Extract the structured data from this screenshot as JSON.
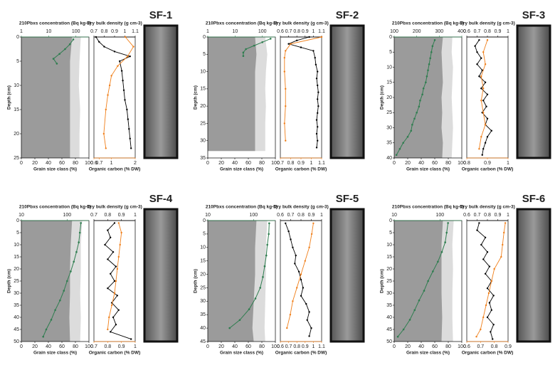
{
  "chart_data": [
    {
      "type": "profile",
      "title": "SF-1",
      "title_color": "#d0202e",
      "ylabel": "Depth (cm)",
      "ylim": [
        0,
        25
      ],
      "yticks": [
        0,
        5,
        10,
        15,
        20,
        25
      ],
      "grain": {
        "xlabel": "Grain size class (%)",
        "xlim": [
          0,
          100
        ],
        "xticks": [
          0,
          20,
          40,
          60,
          80,
          100
        ],
        "dark_color": "#9b9b9b",
        "light_color": "#dcdcdc",
        "depths": [
          0,
          5,
          10,
          15,
          20,
          25
        ],
        "dark": [
          75,
          72,
          72,
          72,
          72,
          72
        ],
        "light": [
          88,
          86,
          85,
          87,
          86,
          86
        ]
      },
      "pb": {
        "label": "210Pbxs concentration (Bq kg-1)",
        "xlim": [
          1,
          300
        ],
        "xticks": [
          1,
          10,
          100
        ],
        "log": true,
        "color": "#2e7d4f",
        "depths": [
          0.5,
          1.5,
          2.5,
          3.5,
          4.5,
          5.5
        ],
        "values": [
          80,
          60,
          40,
          25,
          15,
          20
        ]
      },
      "density": {
        "label": "Dry bulk density (g cm-3)",
        "xlim": [
          0.7,
          1.1
        ],
        "xticks": [
          0.7,
          0.8,
          0.9,
          1.0,
          1.1
        ],
        "color": "#000000",
        "depths": [
          0,
          1,
          2,
          3,
          4,
          5,
          7,
          9,
          11,
          13,
          15,
          17,
          19,
          21,
          23
        ],
        "values": [
          0.72,
          0.75,
          0.8,
          0.9,
          1.05,
          0.95,
          0.97,
          0.98,
          0.99,
          1.0,
          1.02,
          1.03,
          1.04,
          1.05,
          1.06
        ]
      },
      "oc": {
        "label": "Organic carbon (% DW)",
        "xlim": [
          0.6,
          2.0
        ],
        "xticks": [
          0.6,
          0.7,
          1.0,
          2.0
        ],
        "log": true,
        "color": "#f07f1a",
        "depths": [
          0,
          2,
          4,
          6,
          8,
          10,
          12,
          15,
          20,
          23
        ],
        "values": [
          1.5,
          1.9,
          1.6,
          1.2,
          1.0,
          0.95,
          0.9,
          0.85,
          0.8,
          0.85
        ]
      }
    },
    {
      "type": "profile",
      "title": "SF-2",
      "title_color": "#d0202e",
      "ylabel": "Depth (cm)",
      "ylim": [
        0,
        35
      ],
      "yticks": [
        0,
        5,
        10,
        15,
        20,
        25,
        30,
        35
      ],
      "grain": {
        "xlabel": "Grain size class (%)",
        "xlim": [
          0,
          100
        ],
        "xticks": [
          0,
          20,
          40,
          60,
          80,
          100
        ],
        "dark_color": "#9b9b9b",
        "light_color": "#dcdcdc",
        "depths": [
          0,
          5,
          10,
          15,
          20,
          25,
          30,
          33
        ],
        "dark": [
          70,
          72,
          70,
          70,
          70,
          70,
          70,
          70
        ],
        "light": [
          85,
          88,
          86,
          85,
          86,
          85,
          85,
          85
        ]
      },
      "pb": {
        "label": "210Pbxs concentration (Bq kg-1)",
        "xlim": [
          1,
          300
        ],
        "xticks": [
          1,
          10,
          100
        ],
        "log": true,
        "color": "#2e7d4f",
        "depths": [
          0.5,
          1.5,
          2.5,
          3.5,
          4.5,
          5.5
        ],
        "values": [
          200,
          100,
          50,
          25,
          20,
          20
        ]
      },
      "density": {
        "label": "Dry bulk density (g cm-3)",
        "xlim": [
          0.6,
          1.1
        ],
        "xticks": [
          0.6,
          0.7,
          0.8,
          0.9,
          1.0,
          1.1
        ],
        "color": "#000000",
        "depths": [
          0,
          1,
          2,
          3,
          4,
          6,
          8,
          10,
          12,
          14,
          16,
          18,
          20,
          22,
          24,
          26,
          28,
          30,
          32
        ],
        "values": [
          0.95,
          0.8,
          0.7,
          0.85,
          1.0,
          1.02,
          1.03,
          1.05,
          1.04,
          1.05,
          1.06,
          1.05,
          1.06,
          1.05,
          1.04,
          1.05,
          1.04,
          1.05,
          1.04
        ]
      },
      "oc": {
        "label": "Organic carbon (% DW)",
        "xlim": [
          0.7,
          1.1
        ],
        "xticks": [
          0.7,
          0.8,
          0.9,
          1.0,
          1.1
        ],
        "color": "#f07f1a",
        "depths": [
          0,
          2,
          4,
          6,
          10,
          15,
          20,
          25,
          30
        ],
        "values": [
          1.1,
          0.8,
          0.75,
          0.74,
          0.74,
          0.75,
          0.75,
          0.74,
          0.75
        ]
      }
    },
    {
      "type": "profile",
      "title": "SF-3",
      "title_color": "#2a2aa8",
      "ylabel": "Depth (cm)",
      "ylim": [
        0,
        40
      ],
      "yticks": [
        0,
        5,
        10,
        15,
        20,
        25,
        30,
        35,
        40
      ],
      "grain": {
        "xlabel": "Grain size class (%)",
        "xlim": [
          0,
          100
        ],
        "xticks": [
          0,
          20,
          40,
          60,
          80,
          100
        ],
        "dark_color": "#9b9b9b",
        "light_color": "#dcdcdc",
        "depths": [
          0,
          5,
          10,
          15,
          20,
          25,
          30,
          35,
          40
        ],
        "dark": [
          72,
          70,
          71,
          72,
          70,
          71,
          70,
          72,
          71
        ],
        "light": [
          86,
          85,
          87,
          86,
          85,
          86,
          87,
          86,
          85
        ]
      },
      "pb": {
        "label": "210Pbxs concentration (Bq kg-1)",
        "xlim": [
          100,
          400
        ],
        "xticks": [
          100,
          200,
          300,
          400
        ],
        "color": "#2e7d4f",
        "depths": [
          1,
          3,
          5,
          7,
          9,
          11,
          13,
          15,
          17,
          19,
          21,
          23,
          25,
          27,
          29,
          31,
          33,
          35,
          37,
          39
        ],
        "values": [
          280,
          270,
          265,
          260,
          255,
          250,
          245,
          240,
          230,
          225,
          215,
          210,
          200,
          190,
          180,
          175,
          160,
          140,
          125,
          110
        ]
      },
      "density": {
        "label": "Dry bulk density (g cm-3)",
        "xlim": [
          0.6,
          1.0
        ],
        "xticks": [
          0.6,
          0.7,
          0.8,
          0.9,
          1.0
        ],
        "color": "#000000",
        "depths": [
          1,
          3,
          5,
          7,
          9,
          11,
          13,
          15,
          17,
          19,
          21,
          23,
          25,
          27,
          29,
          31,
          33,
          35,
          37,
          39
        ],
        "values": [
          0.72,
          0.68,
          0.7,
          0.74,
          0.7,
          0.75,
          0.72,
          0.78,
          0.74,
          0.8,
          0.76,
          0.79,
          0.75,
          0.8,
          0.78,
          0.84,
          0.8,
          0.78,
          0.76,
          0.75
        ]
      },
      "oc": {
        "label": "Organic carbon (% DW)",
        "xlim": [
          0.8,
          1.0
        ],
        "xticks": [
          0.8,
          0.9,
          1.0
        ],
        "color": "#f07f1a",
        "depths": [
          1,
          5,
          9,
          13,
          17,
          21,
          25,
          29,
          33,
          37
        ],
        "values": [
          0.9,
          0.88,
          0.89,
          0.87,
          0.88,
          0.87,
          0.88,
          0.89,
          0.87,
          0.86
        ]
      }
    },
    {
      "type": "profile",
      "title": "SF-4",
      "title_color": "#2a2aa8",
      "ylabel": "Depth (cm)",
      "ylim": [
        0,
        50
      ],
      "yticks": [
        0,
        5,
        10,
        15,
        20,
        25,
        30,
        35,
        40,
        45,
        50
      ],
      "grain": {
        "xlabel": "Grain size class (%)",
        "xlim": [
          0,
          100
        ],
        "xticks": [
          0,
          20,
          40,
          60,
          80,
          100
        ],
        "dark_color": "#9b9b9b",
        "light_color": "#dcdcdc",
        "depths": [
          0,
          10,
          20,
          30,
          40,
          50
        ],
        "dark": [
          75,
          73,
          72,
          72,
          71,
          72
        ],
        "light": [
          90,
          88,
          88,
          87,
          88,
          87
        ]
      },
      "pb": {
        "label": "210Pbxs concentration (Bq kg-1)",
        "xlim": [
          10,
          300
        ],
        "xticks": [
          10,
          100
        ],
        "log": true,
        "color": "#2e7d4f",
        "depths": [
          1,
          5,
          9,
          13,
          17,
          21,
          25,
          29,
          33,
          37,
          41,
          45,
          48
        ],
        "values": [
          200,
          190,
          180,
          160,
          140,
          120,
          100,
          85,
          70,
          55,
          45,
          35,
          30
        ]
      },
      "density": {
        "label": "Dry bulk density (g cm-3)",
        "xlim": [
          0.7,
          1.0
        ],
        "xticks": [
          0.7,
          0.8,
          0.9,
          1.0
        ],
        "color": "#000000",
        "depths": [
          1,
          4,
          7,
          10,
          13,
          16,
          19,
          22,
          25,
          28,
          31,
          34,
          37,
          40,
          43,
          46,
          49
        ],
        "values": [
          0.85,
          0.8,
          0.82,
          0.78,
          0.84,
          0.8,
          0.86,
          0.82,
          0.85,
          0.8,
          0.87,
          0.83,
          0.88,
          0.84,
          0.86,
          0.82,
          0.97
        ]
      },
      "oc": {
        "label": "Organic carbon (% DW)",
        "xlim": [
          0.7,
          1.0
        ],
        "xticks": [
          0.7,
          0.8,
          0.9,
          1.0
        ],
        "color": "#f07f1a",
        "depths": [
          1,
          5,
          10,
          15,
          20,
          25,
          30,
          35,
          40,
          45
        ],
        "values": [
          0.88,
          0.9,
          0.89,
          0.88,
          0.87,
          0.86,
          0.85,
          0.83,
          0.81,
          0.8
        ]
      }
    },
    {
      "type": "profile",
      "title": "SF-5",
      "title_color": "#2a2aa8",
      "ylabel": "Depth (cm)",
      "ylim": [
        0,
        45
      ],
      "yticks": [
        0,
        5,
        10,
        15,
        20,
        25,
        30,
        35,
        40,
        45
      ],
      "grain": {
        "xlabel": "Grain size class (%)",
        "xlim": [
          0,
          100
        ],
        "xticks": [
          0,
          20,
          40,
          60,
          80,
          100
        ],
        "dark_color": "#9b9b9b",
        "light_color": "#dcdcdc",
        "depths": [
          0,
          10,
          20,
          30,
          40,
          45
        ],
        "dark": [
          72,
          70,
          70,
          68,
          66,
          68
        ],
        "light": [
          88,
          86,
          86,
          85,
          84,
          85
        ]
      },
      "pb": {
        "label": "210Pbxs concentration (Bq kg-1)",
        "xlim": [
          10,
          300
        ],
        "xticks": [
          10,
          100
        ],
        "log": true,
        "color": "#2e7d4f",
        "depths": [
          1,
          5,
          9,
          13,
          17,
          21,
          25,
          29,
          33,
          37,
          40
        ],
        "values": [
          220,
          215,
          200,
          190,
          175,
          160,
          140,
          110,
          80,
          50,
          30
        ]
      },
      "density": {
        "label": "Dry bulk density (g cm-3)",
        "xlim": [
          0.6,
          1.0
        ],
        "xticks": [
          0.6,
          0.7,
          0.8,
          0.9,
          1.0
        ],
        "color": "#000000",
        "depths": [
          1,
          4,
          7,
          10,
          13,
          16,
          19,
          22,
          25,
          28,
          31,
          34,
          37,
          40,
          43
        ],
        "values": [
          0.65,
          0.68,
          0.7,
          0.72,
          0.75,
          0.74,
          0.78,
          0.8,
          0.82,
          0.8,
          0.85,
          0.88,
          0.86,
          0.9,
          0.88
        ]
      },
      "oc": {
        "label": "Organic carbon (% DW)",
        "xlim": [
          0.6,
          1.1
        ],
        "xticks": [
          0.6,
          0.7,
          0.8,
          0.9,
          1.0,
          1.1
        ],
        "color": "#f07f1a",
        "depths": [
          1,
          5,
          10,
          15,
          20,
          25,
          30,
          35,
          40
        ],
        "values": [
          1.0,
          0.98,
          0.95,
          0.9,
          0.85,
          0.8,
          0.75,
          0.72,
          0.68
        ]
      }
    },
    {
      "type": "profile",
      "title": "SF-6",
      "title_color": "#2a2aa8",
      "ylabel": "Depth (cm)",
      "ylim": [
        0,
        50
      ],
      "yticks": [
        0,
        5,
        10,
        15,
        20,
        25,
        30,
        35,
        40,
        45,
        50
      ],
      "grain": {
        "xlabel": "Grain size class (%)",
        "xlim": [
          0,
          100
        ],
        "xticks": [
          0,
          20,
          40,
          60,
          80,
          100
        ],
        "dark_color": "#9b9b9b",
        "light_color": "#dcdcdc",
        "depths": [
          0,
          10,
          20,
          30,
          40,
          50
        ],
        "dark": [
          72,
          70,
          70,
          70,
          71,
          70
        ],
        "light": [
          88,
          86,
          87,
          86,
          86,
          87
        ]
      },
      "pb": {
        "label": "210Pbxs concentration (Bq kg-1)",
        "xlim": [
          10,
          300
        ],
        "xticks": [
          10,
          100
        ],
        "log": true,
        "color": "#2e7d4f",
        "depths": [
          1,
          5,
          9,
          13,
          17,
          21,
          25,
          29,
          33,
          37,
          41,
          45,
          48
        ],
        "values": [
          150,
          140,
          130,
          110,
          90,
          70,
          55,
          45,
          35,
          28,
          22,
          16,
          12
        ]
      },
      "density": {
        "label": "Dry bulk density (g cm-3)",
        "xlim": [
          0.6,
          1.0
        ],
        "xticks": [
          0.6,
          0.7,
          0.8,
          0.9,
          1.0
        ],
        "color": "#000000",
        "depths": [
          1,
          4,
          7,
          10,
          13,
          16,
          19,
          22,
          25,
          28,
          31,
          34,
          37,
          40,
          43,
          46,
          49
        ],
        "values": [
          0.72,
          0.7,
          0.78,
          0.74,
          0.8,
          0.76,
          0.82,
          0.78,
          0.84,
          0.8,
          0.86,
          0.82,
          0.84,
          0.8,
          0.86,
          0.83,
          0.85
        ]
      },
      "oc": {
        "label": "Organic carbon (% DW)",
        "xlim": [
          0.6,
          0.9
        ],
        "xticks": [
          0.6,
          0.7,
          0.8,
          0.9
        ],
        "color": "#f07f1a",
        "depths": [
          1,
          5,
          10,
          15,
          20,
          25,
          30,
          35,
          40,
          45,
          48
        ],
        "values": [
          0.88,
          0.87,
          0.86,
          0.85,
          0.8,
          0.78,
          0.76,
          0.74,
          0.72,
          0.7,
          0.67
        ]
      }
    }
  ]
}
